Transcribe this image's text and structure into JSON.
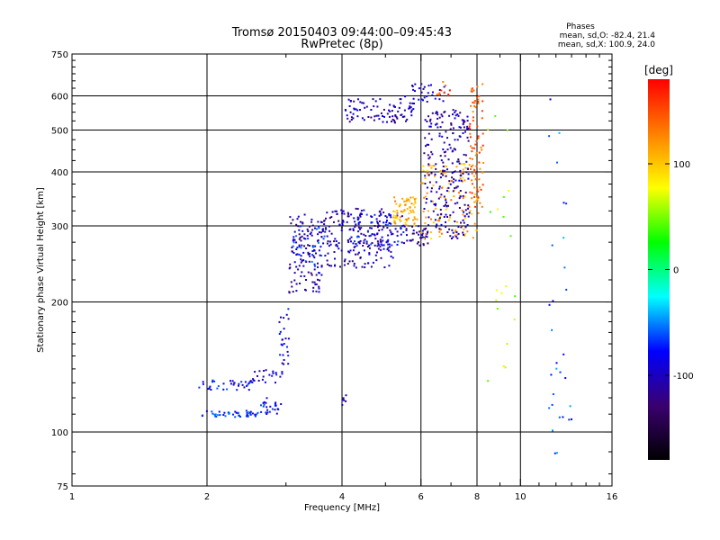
{
  "chart_data": {
    "type": "scatter",
    "title": "Tromsø 20150403 09:44:00–09:45:43",
    "subtitle": "RwPretec (8p)",
    "xlabel": "Frequency [MHz]",
    "ylabel": "Stationary phase Virtual Height [km]",
    "x_scale": "log",
    "y_scale": "log",
    "xlim": [
      1,
      16
    ],
    "ylim": [
      75,
      750
    ],
    "x_ticks": [
      1,
      2,
      4,
      6,
      8,
      10,
      16
    ],
    "y_ticks": [
      75,
      100,
      200,
      300,
      400,
      500,
      600,
      750
    ],
    "grid": true,
    "stats": {
      "heading": "Phases",
      "o_mode": "mean, sd,O: -82.4, 21.4",
      "x_mode": "mean, sd,X: 100.9, 24.0"
    },
    "colorbar": {
      "label": "[deg]",
      "min": -180,
      "max": 180,
      "ticks": [
        100,
        0,
        -100
      ],
      "colormap": "rainbow",
      "colors": [
        "#000000",
        "#3a0070",
        "#0000ff",
        "#00ffff",
        "#00ff00",
        "#ffff00",
        "#ff8000",
        "#ff0000"
      ]
    },
    "clusters": [
      {
        "f": [
          1.95,
          2.6
        ],
        "h": [
          108,
          112
        ],
        "phase": -70,
        "count": 45
      },
      {
        "f": [
          2.6,
          2.95
        ],
        "h": [
          110,
          120
        ],
        "phase": -85,
        "count": 25
      },
      {
        "f": [
          1.9,
          2.5
        ],
        "h": [
          125,
          132
        ],
        "phase": -80,
        "count": 35
      },
      {
        "f": [
          2.5,
          2.95
        ],
        "h": [
          130,
          140
        ],
        "phase": -95,
        "count": 25
      },
      {
        "f": [
          2.9,
          3.05
        ],
        "h": [
          140,
          195
        ],
        "phase": -90,
        "count": 25
      },
      {
        "f": [
          3.05,
          3.6
        ],
        "h": [
          210,
          320
        ],
        "phase": -110,
        "count": 110
      },
      {
        "f": [
          3.1,
          3.7
        ],
        "h": [
          230,
          300
        ],
        "phase": -75,
        "count": 45
      },
      {
        "f": [
          3.6,
          5.2
        ],
        "h": [
          240,
          330
        ],
        "phase": -105,
        "count": 200
      },
      {
        "f": [
          4.2,
          5.5
        ],
        "h": [
          270,
          320
        ],
        "phase": -80,
        "count": 70
      },
      {
        "f": [
          5.2,
          5.9
        ],
        "h": [
          300,
          350
        ],
        "phase": 110,
        "count": 70
      },
      {
        "f": [
          5.5,
          6.3
        ],
        "h": [
          270,
          300
        ],
        "phase": -110,
        "count": 40
      },
      {
        "f": [
          6.0,
          8.0
        ],
        "h": [
          280,
          420
        ],
        "phase": 110,
        "count": 110
      },
      {
        "f": [
          6.1,
          7.7
        ],
        "h": [
          280,
          560
        ],
        "phase": -105,
        "count": 230
      },
      {
        "f": [
          7.7,
          8.3
        ],
        "h": [
          320,
          640
        ],
        "phase": 140,
        "count": 80
      },
      {
        "f": [
          4.0,
          5.8
        ],
        "h": [
          520,
          590
        ],
        "phase": -105,
        "count": 90
      },
      {
        "f": [
          5.5,
          6.8
        ],
        "h": [
          580,
          640
        ],
        "phase": -95,
        "count": 30
      },
      {
        "f": [
          6.5,
          7.0
        ],
        "h": [
          600,
          650
        ],
        "phase": 150,
        "count": 10
      },
      {
        "f": [
          4.0,
          4.1
        ],
        "h": [
          115,
          122
        ],
        "phase": -110,
        "count": 6
      },
      {
        "f": [
          8.4,
          9.8
        ],
        "h": [
          105,
          660
        ],
        "phase": 60,
        "count": 20
      },
      {
        "f": [
          11.5,
          13.0
        ],
        "h": [
          88,
          620
        ],
        "phase": -60,
        "count": 30
      }
    ]
  }
}
